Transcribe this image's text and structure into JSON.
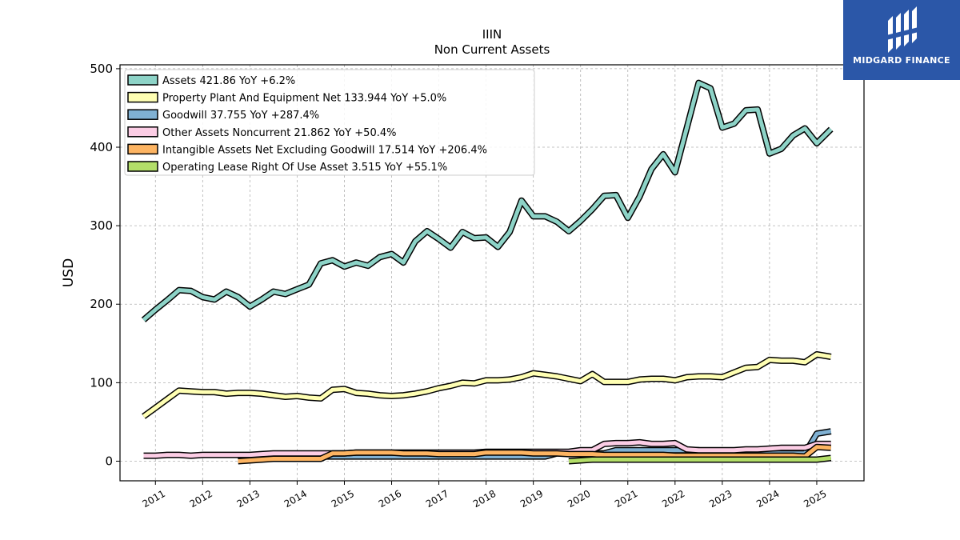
{
  "brand": {
    "name": "MIDGARD FINANCE",
    "background": "#2b57a8"
  },
  "chart_data": {
    "type": "line",
    "title": "IIIN",
    "subtitle": "Non Current  Assets",
    "ylabel": "USD",
    "xlabel": "",
    "ylim": [
      -25,
      505
    ],
    "xlim": [
      2010.25,
      2026.0
    ],
    "yticks": [
      0,
      100,
      200,
      300,
      400,
      500
    ],
    "xticks": [
      2011,
      2012,
      2013,
      2014,
      2015,
      2016,
      2017,
      2018,
      2019,
      2020,
      2021,
      2022,
      2023,
      2024,
      2025
    ],
    "grid": true,
    "legend_position": "top-left",
    "series": [
      {
        "name": "Assets  421.86 YoY +6.2%",
        "color": "#8dd3c7",
        "x": [
          2010.75,
          2011.0,
          2011.25,
          2011.5,
          2011.75,
          2012.0,
          2012.25,
          2012.5,
          2012.75,
          2013.0,
          2013.25,
          2013.5,
          2013.75,
          2014.0,
          2014.25,
          2014.5,
          2014.75,
          2015.0,
          2015.25,
          2015.5,
          2015.75,
          2016.0,
          2016.25,
          2016.5,
          2016.75,
          2017.0,
          2017.25,
          2017.5,
          2017.75,
          2018.0,
          2018.25,
          2018.5,
          2018.75,
          2019.0,
          2019.25,
          2019.5,
          2019.75,
          2020.0,
          2020.25,
          2020.5,
          2020.75,
          2021.0,
          2021.25,
          2021.5,
          2021.75,
          2022.0,
          2022.25,
          2022.5,
          2022.75,
          2023.0,
          2023.25,
          2023.5,
          2023.75,
          2024.0,
          2024.25,
          2024.5,
          2024.75,
          2025.0,
          2025.3
        ],
        "y": [
          180,
          193,
          205,
          218,
          217,
          209,
          206,
          216,
          209,
          197,
          206,
          216,
          213,
          219,
          225,
          252,
          256,
          248,
          253,
          249,
          260,
          264,
          253,
          280,
          293,
          283,
          272,
          292,
          284,
          285,
          273,
          292,
          332,
          312,
          312,
          305,
          293,
          306,
          321,
          338,
          339,
          310,
          337,
          372,
          391,
          368,
          425,
          482,
          475,
          425,
          430,
          447,
          448,
          392,
          398,
          415,
          424,
          405,
          423
        ]
      },
      {
        "name": "Property Plant And Equipment Net  133.944 YoY +5.0%",
        "color": "#ffffb3",
        "x": [
          2010.75,
          2011.0,
          2011.25,
          2011.5,
          2011.75,
          2012.0,
          2012.25,
          2012.5,
          2012.75,
          2013.0,
          2013.25,
          2013.5,
          2013.75,
          2014.0,
          2014.25,
          2014.5,
          2014.75,
          2015.0,
          2015.25,
          2015.5,
          2015.75,
          2016.0,
          2016.25,
          2016.5,
          2016.75,
          2017.0,
          2017.25,
          2017.5,
          2017.75,
          2018.0,
          2018.25,
          2018.5,
          2018.75,
          2019.0,
          2019.25,
          2019.5,
          2019.75,
          2020.0,
          2020.25,
          2020.5,
          2020.75,
          2021.0,
          2021.25,
          2021.5,
          2021.75,
          2022.0,
          2022.25,
          2022.5,
          2022.75,
          2023.0,
          2023.25,
          2023.5,
          2023.75,
          2024.0,
          2024.25,
          2024.5,
          2024.75,
          2025.0,
          2025.3
        ],
        "y": [
          57,
          68,
          79,
          90,
          89,
          88,
          88,
          86,
          87,
          87,
          86,
          84,
          82,
          83,
          81,
          80,
          91,
          92,
          87,
          86,
          84,
          83,
          84,
          86,
          89,
          93,
          96,
          100,
          99,
          103,
          103,
          104,
          107,
          112,
          110,
          108,
          105,
          102,
          111,
          101,
          101,
          101,
          104,
          105,
          105,
          103,
          107,
          108,
          108,
          107,
          113,
          119,
          120,
          129,
          128,
          128,
          126,
          136,
          133
        ]
      },
      {
        "name": "Goodwill  37.755 YoY +287.4%",
        "color": "#80b1d3",
        "x": [
          2012.75,
          2013.0,
          2013.25,
          2013.5,
          2013.75,
          2014.0,
          2014.25,
          2014.5,
          2014.75,
          2015.0,
          2015.25,
          2015.5,
          2015.75,
          2016.0,
          2016.25,
          2016.5,
          2016.75,
          2017.0,
          2017.25,
          2017.5,
          2017.75,
          2018.0,
          2018.25,
          2018.5,
          2018.75,
          2019.0,
          2019.25,
          2019.5,
          2019.75,
          2020.0,
          2020.25,
          2020.5,
          2020.75,
          2021.0,
          2021.25,
          2021.5,
          2021.75,
          2022.0,
          2022.25,
          2022.5,
          2022.75,
          2023.0,
          2023.25,
          2023.5,
          2023.75,
          2024.0,
          2024.25,
          2024.5,
          2024.75,
          2025.0,
          2025.3
        ],
        "y": [
          6,
          6,
          6,
          6,
          6,
          6,
          6,
          6,
          6,
          6,
          6,
          6,
          6,
          6,
          6,
          6,
          6,
          6,
          6,
          6,
          6,
          6,
          6,
          6,
          6,
          6,
          6,
          10,
          10,
          10,
          10,
          10,
          14,
          14,
          14,
          14,
          14,
          14,
          14,
          14,
          10,
          10,
          10,
          10,
          10,
          10,
          10,
          10,
          10,
          35,
          38
        ]
      },
      {
        "name": "Other Assets Noncurrent  21.862 YoY +50.4%",
        "color": "#fccde5",
        "x": [
          2010.75,
          2011.0,
          2011.25,
          2011.5,
          2011.75,
          2012.0,
          2012.25,
          2012.5,
          2012.75,
          2013.0,
          2013.25,
          2013.5,
          2013.75,
          2014.0,
          2014.25,
          2014.5,
          2014.75,
          2015.0,
          2015.25,
          2015.5,
          2015.75,
          2016.0,
          2016.25,
          2016.5,
          2016.75,
          2017.0,
          2017.25,
          2017.5,
          2017.75,
          2018.0,
          2018.25,
          2018.5,
          2018.75,
          2019.0,
          2019.25,
          2019.5,
          2019.75,
          2020.0,
          2020.25,
          2020.5,
          2020.75,
          2021.0,
          2021.25,
          2021.5,
          2021.75,
          2022.0,
          2022.25,
          2022.5,
          2022.75,
          2023.0,
          2023.25,
          2023.5,
          2023.75,
          2024.0,
          2024.25,
          2024.5,
          2024.75,
          2025.0,
          2025.3
        ],
        "y": [
          7,
          7,
          8,
          8,
          7,
          8,
          8,
          8,
          8,
          8,
          9,
          10,
          10,
          10,
          10,
          10,
          10,
          10,
          11,
          11,
          11,
          11,
          11,
          11,
          11,
          11,
          11,
          11,
          11,
          12,
          12,
          12,
          12,
          12,
          12,
          12,
          12,
          14,
          14,
          22,
          23,
          23,
          24,
          22,
          22,
          23,
          15,
          14,
          14,
          14,
          14,
          15,
          15,
          16,
          17,
          17,
          17,
          22,
          22
        ]
      },
      {
        "name": "Intangible Assets Net Excluding Goodwill  17.514 YoY +206.4%",
        "color": "#fdb462",
        "x": [
          2012.75,
          2013.0,
          2013.25,
          2013.5,
          2013.75,
          2014.0,
          2014.25,
          2014.5,
          2014.75,
          2015.0,
          2015.25,
          2015.5,
          2015.75,
          2016.0,
          2016.25,
          2016.5,
          2016.75,
          2017.0,
          2017.25,
          2017.5,
          2017.75,
          2018.0,
          2018.25,
          2018.5,
          2018.75,
          2019.0,
          2019.25,
          2019.5,
          2019.75,
          2020.0,
          2020.25,
          2020.5,
          2020.75,
          2021.0,
          2021.25,
          2021.5,
          2021.75,
          2022.0,
          2022.25,
          2022.5,
          2022.75,
          2023.0,
          2023.25,
          2023.5,
          2023.75,
          2024.0,
          2024.25,
          2024.5,
          2024.75,
          2025.0,
          2025.3
        ],
        "y": [
          0,
          1,
          2,
          3,
          3,
          3,
          3,
          3,
          10,
          10,
          11,
          11,
          11,
          11,
          10,
          10,
          10,
          9,
          9,
          9,
          9,
          11,
          11,
          11,
          11,
          10,
          10,
          10,
          9,
          9,
          9,
          8,
          8,
          8,
          8,
          8,
          8,
          7,
          7,
          7,
          7,
          7,
          7,
          7,
          7,
          7,
          7,
          7,
          6,
          18,
          17
        ]
      },
      {
        "name": "Operating Lease Right Of Use Asset  3.515 YoY +55.1%",
        "color": "#b3de69",
        "x": [
          2019.75,
          2020.0,
          2020.25,
          2020.5,
          2020.75,
          2021.0,
          2021.25,
          2021.5,
          2021.75,
          2022.0,
          2022.25,
          2022.5,
          2022.75,
          2023.0,
          2023.25,
          2023.5,
          2023.75,
          2024.0,
          2024.25,
          2024.5,
          2024.75,
          2025.0,
          2025.3
        ],
        "y": [
          0,
          1,
          2,
          2,
          2,
          2,
          2,
          2,
          2,
          2,
          2,
          2,
          2,
          2,
          2,
          2,
          2,
          2,
          2,
          2,
          2,
          2,
          4
        ]
      }
    ]
  }
}
